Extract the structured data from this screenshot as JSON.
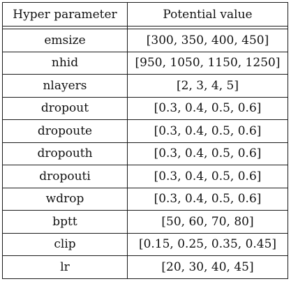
{
  "table": {
    "headers": [
      "Hyper parameter",
      "Potential value"
    ],
    "rows": [
      [
        "emsize",
        "[300, 350, 400, 450]"
      ],
      [
        "nhid",
        "[950, 1050, 1150, 1250]"
      ],
      [
        "nlayers",
        "[2, 3, 4, 5]"
      ],
      [
        "dropout",
        "[0.3, 0.4, 0.5, 0.6]"
      ],
      [
        "dropoute",
        "[0.3, 0.4, 0.5, 0.6]"
      ],
      [
        "dropouth",
        "[0.3, 0.4, 0.5, 0.6]"
      ],
      [
        "dropouti",
        "[0.3, 0.4, 0.5, 0.6]"
      ],
      [
        "wdrop",
        "[0.3, 0.4, 0.5, 0.6]"
      ],
      [
        "bptt",
        "[50, 60, 70, 80]"
      ],
      [
        "clip",
        "[0.15, 0.25, 0.35, 0.45]"
      ],
      [
        "lr",
        "[20, 30, 40, 45]"
      ]
    ]
  }
}
